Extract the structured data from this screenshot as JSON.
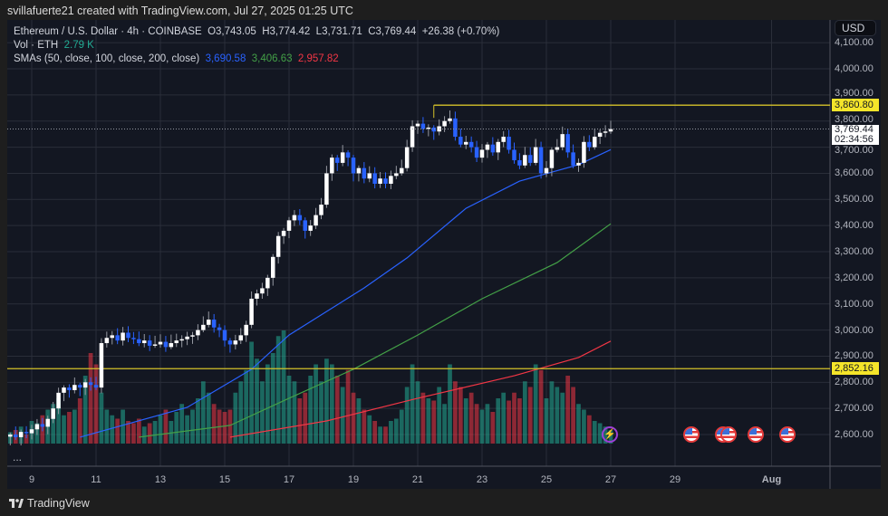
{
  "attribution": "svillafuerte21 created with TradingView.com, Jul 27, 2025 01:25 UTC",
  "legend": {
    "symbol": "Ethereum / U.S. Dollar · 4h · COINBASE",
    "open": "O3,743.05",
    "high": "H3,774.42",
    "low": "L3,731.71",
    "close": "C3,769.44",
    "change": "+26.38 (+0.70%)",
    "vol_label": "Vol · ETH",
    "vol_value": "2.79 K",
    "sma_label": "SMAs (50, close, 100, close, 200, close)",
    "sma50": "3,690.58",
    "sma100": "3,406.63",
    "sma200": "2,957.82"
  },
  "currency_button": "USD",
  "price_axis": [
    "4,100.00",
    "4,000.00",
    "3,900.00",
    "3,800.00",
    "3,700.00",
    "3,600.00",
    "3,500.00",
    "3,400.00",
    "3,300.00",
    "3,200.00",
    "3,100.00",
    "3,000.00",
    "2,900.00",
    "2,800.00",
    "2,700.00",
    "2,600.00"
  ],
  "tags": {
    "resistance": "3,860.80",
    "last_price": "3,769.44",
    "countdown": "02:34:56",
    "support": "2,852.16"
  },
  "time_axis": [
    "9",
    "11",
    "13",
    "15",
    "17",
    "19",
    "21",
    "23",
    "25",
    "27",
    "29",
    "Aug"
  ],
  "more_label": "...",
  "brand": "TradingView",
  "colors": {
    "up": "#ffffff",
    "down": "#2962ff",
    "vol_up": "#22ab94",
    "vol_down": "#f23645",
    "sma50": "#2962ff",
    "sma100": "#43a047",
    "sma200": "#f23645",
    "levels": "#d4c22a",
    "background": "#131722"
  },
  "chart_data": {
    "type": "candlestick",
    "interval": "4h",
    "start": "2025-07-08 08:00",
    "closes": [
      2600,
      2590,
      2610,
      2605,
      2620,
      2640,
      2630,
      2660,
      2700,
      2760,
      2780,
      2770,
      2790,
      2780,
      2800,
      2790,
      2780,
      2950,
      2970,
      2980,
      2960,
      2990,
      2970,
      2965,
      2950,
      2960,
      2940,
      2945,
      2955,
      2935,
      2950,
      2960,
      2965,
      2975,
      2980,
      3000,
      3020,
      3040,
      3010,
      3000,
      2960,
      2945,
      2960,
      2980,
      3020,
      3120,
      3140,
      3160,
      3200,
      3280,
      3360,
      3380,
      3420,
      3440,
      3420,
      3380,
      3400,
      3440,
      3480,
      3600,
      3660,
      3640,
      3680,
      3660,
      3600,
      3620,
      3580,
      3600,
      3560,
      3580,
      3560,
      3590,
      3600,
      3620,
      3700,
      3780,
      3790,
      3770,
      3775,
      3760,
      3780,
      3800,
      3810,
      3740,
      3710,
      3720,
      3700,
      3660,
      3690,
      3710,
      3680,
      3720,
      3740,
      3690,
      3650,
      3630,
      3670,
      3640,
      3700,
      3600,
      3620,
      3690,
      3700,
      3750,
      3680,
      3630,
      3640,
      3720,
      3700,
      3740,
      3755,
      3760,
      3769.44
    ],
    "volume_relative": [
      10,
      12,
      15,
      8,
      20,
      18,
      25,
      30,
      35,
      40,
      25,
      28,
      30,
      40,
      60,
      80,
      70,
      45,
      30,
      25,
      22,
      30,
      20,
      18,
      22,
      15,
      18,
      20,
      25,
      30,
      20,
      28,
      35,
      25,
      30,
      40,
      55,
      45,
      35,
      30,
      28,
      30,
      45,
      55,
      65,
      90,
      75,
      55,
      70,
      80,
      95,
      100,
      60,
      55,
      40,
      45,
      60,
      70,
      55,
      75,
      70,
      60,
      50,
      65,
      45,
      40,
      30,
      25,
      20,
      15,
      15,
      20,
      22,
      30,
      50,
      70,
      55,
      45,
      40,
      38,
      50,
      35,
      70,
      55,
      50,
      40,
      45,
      35,
      30,
      35,
      28,
      40,
      45,
      38,
      45,
      40,
      55,
      50,
      70,
      65,
      40,
      55,
      50,
      45,
      60,
      50,
      35,
      30,
      25,
      20,
      18,
      15,
      12
    ],
    "sma": [
      {
        "name": "SMA 50",
        "points": [
          [
            "07-10 12:00",
            2590
          ],
          [
            "07-13 20:00",
            2704
          ],
          [
            "07-15 20:00",
            2850
          ],
          [
            "07-17 00:00",
            2981
          ],
          [
            "07-19 08:00",
            3161
          ],
          [
            "07-20 16:00",
            3276
          ],
          [
            "07-22 12:00",
            3466
          ],
          [
            "07-24 04:00",
            3570
          ],
          [
            "07-26 00:00",
            3633
          ],
          [
            "07-27 00:00",
            3690.58
          ]
        ]
      },
      {
        "name": "SMA 100",
        "points": [
          [
            "07-12 08:00",
            2590
          ],
          [
            "07-15 04:00",
            2635
          ],
          [
            "07-17 00:00",
            2739
          ],
          [
            "07-19 00:00",
            2850
          ],
          [
            "07-21 00:00",
            2981
          ],
          [
            "07-23 00:00",
            3120
          ],
          [
            "07-25 08:00",
            3258
          ],
          [
            "07-27 00:00",
            3406.63
          ]
        ]
      },
      {
        "name": "SMA 200",
        "points": [
          [
            "07-15 04:00",
            2590
          ],
          [
            "07-18 04:00",
            2652
          ],
          [
            "07-21 00:00",
            2739
          ],
          [
            "07-24 00:00",
            2825
          ],
          [
            "07-26 00:00",
            2895
          ],
          [
            "07-27 00:00",
            2957.82
          ]
        ]
      }
    ],
    "levels": [
      {
        "price": 3860.8,
        "from": "07-21 12:00"
      },
      {
        "price": 2852.16,
        "from": "07-08 00:00"
      }
    ],
    "last_price": 3769.44,
    "events": [
      "07-29 12:00",
      "07-30 12:00",
      "07-30 16:00",
      "07-31 12:00",
      "08-01 12:00"
    ],
    "ylim": [
      2560,
      4130
    ]
  }
}
